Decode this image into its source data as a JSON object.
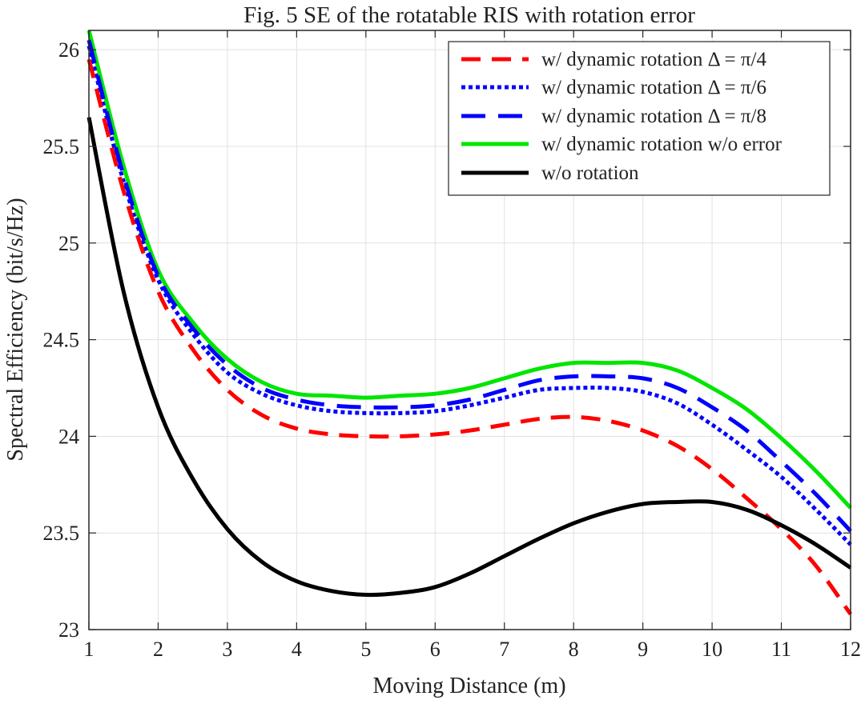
{
  "chart_data": {
    "type": "line",
    "title": "Fig. 5  SE of the rotatable RIS with rotation error",
    "xlabel": "Moving Distance (m)",
    "ylabel": "Spectral Efficiency (bit/s/Hz)",
    "xlim": [
      1,
      12
    ],
    "ylim": [
      23,
      26.1
    ],
    "xticks": [
      1,
      2,
      3,
      4,
      5,
      6,
      7,
      8,
      9,
      10,
      11,
      12
    ],
    "yticks": [
      23,
      23.5,
      24,
      24.5,
      25,
      25.5,
      26
    ],
    "xtick_labels": [
      "1",
      "2",
      "3",
      "4",
      "5",
      "6",
      "7",
      "8",
      "9",
      "10",
      "11",
      "12"
    ],
    "ytick_labels": [
      "23",
      "23.5",
      "24",
      "24.5",
      "25",
      "25.5",
      "26"
    ],
    "grid": true,
    "legend_position": "top-right",
    "series": [
      {
        "name": "w/ dynamic rotation  Δ = π/4",
        "color": "#ff0000",
        "style": "dashed",
        "x": [
          1,
          1.5,
          2,
          2.5,
          3,
          3.5,
          4,
          4.5,
          5,
          5.5,
          6,
          6.5,
          7,
          7.5,
          8,
          8.5,
          9,
          9.5,
          10,
          10.5,
          11,
          11.5,
          12
        ],
        "y": [
          25.95,
          25.27,
          24.75,
          24.45,
          24.24,
          24.11,
          24.04,
          24.01,
          24.0,
          24.0,
          24.01,
          24.03,
          24.06,
          24.09,
          24.1,
          24.08,
          24.03,
          23.95,
          23.83,
          23.68,
          23.52,
          23.33,
          23.08
        ]
      },
      {
        "name": "w/ dynamic rotation  Δ = π/6",
        "color": "#0000ff",
        "style": "dotted",
        "x": [
          1,
          1.5,
          2,
          2.5,
          3,
          3.5,
          4,
          4.5,
          5,
          5.5,
          6,
          6.5,
          7,
          7.5,
          8,
          8.5,
          9,
          9.5,
          10,
          10.5,
          11,
          11.5,
          12
        ],
        "y": [
          26.02,
          25.32,
          24.81,
          24.53,
          24.33,
          24.22,
          24.16,
          24.13,
          24.12,
          24.12,
          24.13,
          24.16,
          24.2,
          24.24,
          24.25,
          24.25,
          24.23,
          24.17,
          24.06,
          23.93,
          23.79,
          23.62,
          23.44
        ]
      },
      {
        "name": "w/ dynamic rotation  Δ = π/8",
        "color": "#0000ff",
        "style": "longdash",
        "x": [
          1,
          1.5,
          2,
          2.5,
          3,
          3.5,
          4,
          4.5,
          5,
          5.5,
          6,
          6.5,
          7,
          7.5,
          8,
          8.5,
          9,
          9.5,
          10,
          10.5,
          11,
          11.5,
          12
        ],
        "y": [
          26.05,
          25.35,
          24.83,
          24.56,
          24.37,
          24.25,
          24.19,
          24.16,
          24.15,
          24.15,
          24.16,
          24.19,
          24.24,
          24.29,
          24.31,
          24.31,
          24.3,
          24.25,
          24.15,
          24.03,
          23.87,
          23.7,
          23.51
        ]
      },
      {
        "name": "w/ dynamic rotation  w/o error",
        "color": "#00e600",
        "style": "solid",
        "x": [
          1,
          1.5,
          2,
          2.5,
          3,
          3.5,
          4,
          4.5,
          5,
          5.5,
          6,
          6.5,
          7,
          7.5,
          8,
          8.5,
          9,
          9.5,
          10,
          10.5,
          11,
          11.5,
          12
        ],
        "y": [
          26.1,
          25.4,
          24.86,
          24.59,
          24.4,
          24.28,
          24.22,
          24.21,
          24.2,
          24.21,
          24.22,
          24.25,
          24.3,
          24.35,
          24.38,
          24.38,
          24.38,
          24.34,
          24.25,
          24.14,
          23.99,
          23.82,
          23.63
        ]
      },
      {
        "name": "w/o rotation",
        "color": "#000000",
        "style": "solid",
        "x": [
          1,
          1.5,
          2,
          2.5,
          3,
          3.5,
          4,
          4.5,
          5,
          5.5,
          6,
          6.5,
          7,
          7.5,
          8,
          8.5,
          9,
          9.5,
          10,
          10.5,
          11,
          11.5,
          12
        ],
        "y": [
          25.65,
          24.75,
          24.15,
          23.78,
          23.52,
          23.35,
          23.25,
          23.2,
          23.18,
          23.19,
          23.22,
          23.29,
          23.38,
          23.47,
          23.55,
          23.61,
          23.65,
          23.66,
          23.66,
          23.62,
          23.54,
          23.44,
          23.32
        ]
      }
    ]
  }
}
